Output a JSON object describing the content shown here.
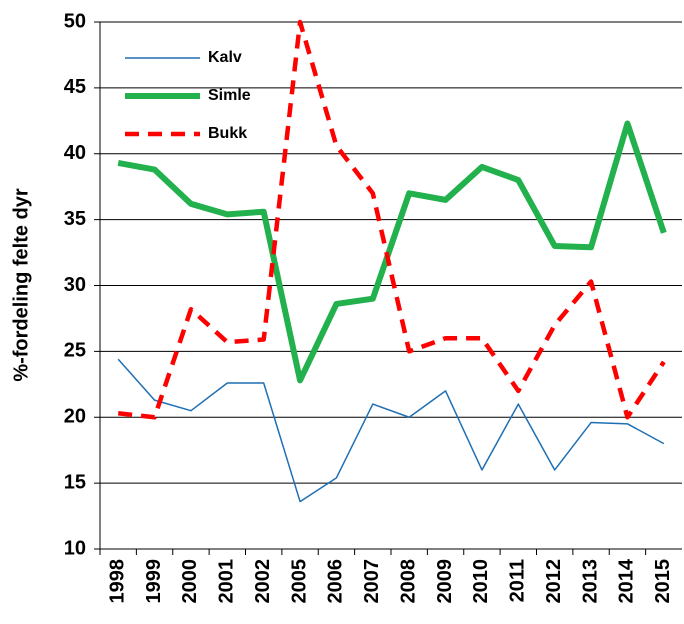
{
  "chart_data": {
    "type": "line",
    "ylabel": "%-fordeling felte dyr",
    "categories": [
      "1998",
      "1999",
      "2000",
      "2001",
      "2002",
      "2005",
      "2006",
      "2007",
      "2008",
      "2009",
      "2010",
      "2011",
      "2012",
      "2013",
      "2014",
      "2015"
    ],
    "series": [
      {
        "name": "Kalv",
        "color": "#1f6fb4",
        "values": [
          24.4,
          21.3,
          20.5,
          22.6,
          22.6,
          13.6,
          15.4,
          21.0,
          20.0,
          22.0,
          16.0,
          21.0,
          16.0,
          19.6,
          19.5,
          18.0
        ]
      },
      {
        "name": "Simle",
        "color": "#22b14c",
        "values": [
          39.3,
          38.8,
          36.2,
          35.4,
          35.6,
          22.8,
          28.6,
          29.0,
          37.0,
          36.5,
          39.0,
          38.0,
          33.0,
          32.9,
          42.3,
          34.0
        ]
      },
      {
        "name": "Bukk",
        "color": "#ff0000",
        "values": [
          20.3,
          20.0,
          28.2,
          25.7,
          25.9,
          50.0,
          40.6,
          37.0,
          25.0,
          26.0,
          26.0,
          22.0,
          27.0,
          30.3,
          20.0,
          24.2
        ]
      }
    ],
    "ylim": [
      10,
      50
    ],
    "yticks": [
      10,
      15,
      20,
      25,
      30,
      35,
      40,
      45,
      50
    ],
    "grid": true,
    "legend": "top-left"
  }
}
